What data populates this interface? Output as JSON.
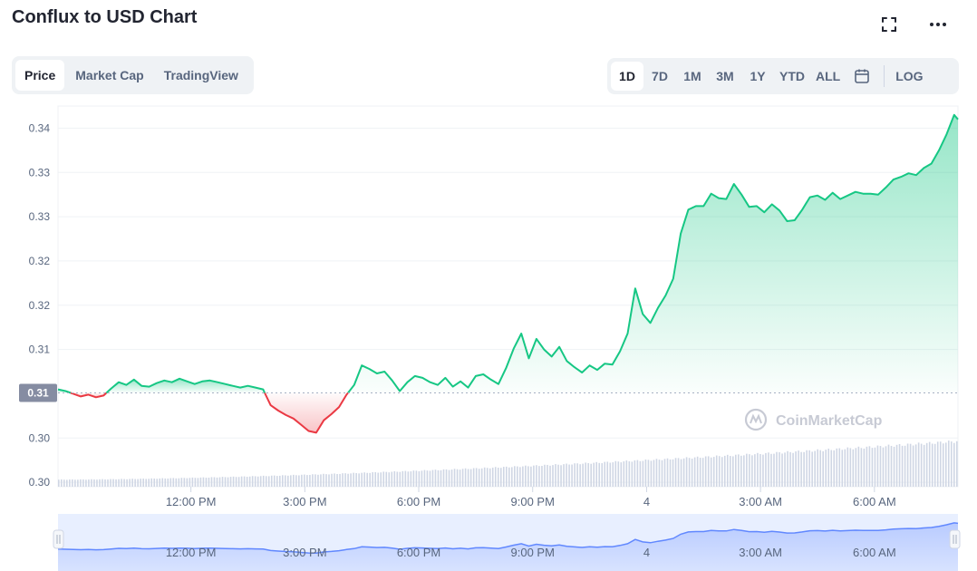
{
  "header": {
    "title": "Conflux to USD Chart",
    "fullscreen_icon": "fullscreen-icon",
    "more_icon": "more-horizontal-icon"
  },
  "tabs": [
    {
      "label": "Price",
      "active": true
    },
    {
      "label": "Market Cap",
      "active": false
    },
    {
      "label": "TradingView",
      "active": false
    }
  ],
  "ranges": [
    {
      "label": "1D",
      "active": true
    },
    {
      "label": "7D",
      "active": false
    },
    {
      "label": "1M",
      "active": false
    },
    {
      "label": "3M",
      "active": false
    },
    {
      "label": "1Y",
      "active": false
    },
    {
      "label": "YTD",
      "active": false
    },
    {
      "label": "ALL",
      "active": false
    }
  ],
  "calendar_icon": "calendar-icon",
  "log_label": "LOG",
  "watermark": "CoinMarketCap",
  "colors": {
    "up": "#16c784",
    "down": "#ea3943",
    "volume": "#cfd6e4",
    "navigator": "#6188ff",
    "current_price_tag": "#858ca2"
  },
  "chart_data": {
    "type": "area",
    "title": "",
    "xlabel": "",
    "ylabel": "",
    "y_tick_labels": [
      "0.34",
      "0.33",
      "0.33",
      "0.32",
      "0.32",
      "0.31",
      "0.30",
      "0.30"
    ],
    "y_tick_values": [
      0.34,
      0.335,
      0.33,
      0.325,
      0.32,
      0.315,
      0.305,
      0.3
    ],
    "ylim": [
      0.2995,
      0.3425
    ],
    "baseline_value": 0.3101,
    "baseline_label": "0.31",
    "x_tick_labels": [
      "12:00 PM",
      "3:00 PM",
      "6:00 PM",
      "9:00 PM",
      "4",
      "3:00 AM",
      "6:00 AM"
    ],
    "x_tick_hours": [
      3.5,
      6.5,
      9.5,
      12.5,
      15.5,
      18.5,
      21.5
    ],
    "x_range_hours": [
      0,
      23.7
    ],
    "grid": true,
    "series": [
      {
        "points": [
          [
            0.0,
            0.3105
          ],
          [
            0.2,
            0.3103
          ],
          [
            0.4,
            0.31
          ],
          [
            0.6,
            0.3097
          ],
          [
            0.8,
            0.3099
          ],
          [
            1.0,
            0.3096
          ],
          [
            1.2,
            0.3098
          ],
          [
            1.4,
            0.3106
          ],
          [
            1.6,
            0.3113
          ],
          [
            1.8,
            0.311
          ],
          [
            2.0,
            0.3116
          ],
          [
            2.2,
            0.3109
          ],
          [
            2.4,
            0.3108
          ],
          [
            2.6,
            0.3112
          ],
          [
            2.8,
            0.3115
          ],
          [
            3.0,
            0.3113
          ],
          [
            3.2,
            0.3117
          ],
          [
            3.4,
            0.3114
          ],
          [
            3.6,
            0.3111
          ],
          [
            3.8,
            0.3114
          ],
          [
            4.0,
            0.3115
          ],
          [
            4.2,
            0.3113
          ],
          [
            4.4,
            0.3111
          ],
          [
            4.6,
            0.3109
          ],
          [
            4.8,
            0.3107
          ],
          [
            5.0,
            0.3109
          ],
          [
            5.2,
            0.3107
          ],
          [
            5.4,
            0.3105
          ],
          [
            5.6,
            0.3087
          ],
          [
            5.8,
            0.3081
          ],
          [
            6.0,
            0.3076
          ],
          [
            6.2,
            0.3072
          ],
          [
            6.4,
            0.3065
          ],
          [
            6.6,
            0.3058
          ],
          [
            6.8,
            0.3056
          ],
          [
            7.0,
            0.307
          ],
          [
            7.2,
            0.3077
          ],
          [
            7.4,
            0.3085
          ],
          [
            7.6,
            0.3099
          ],
          [
            7.8,
            0.311
          ],
          [
            8.0,
            0.3132
          ],
          [
            8.2,
            0.3128
          ],
          [
            8.4,
            0.3123
          ],
          [
            8.6,
            0.3125
          ],
          [
            8.8,
            0.3115
          ],
          [
            9.0,
            0.3103
          ],
          [
            9.2,
            0.3113
          ],
          [
            9.4,
            0.312
          ],
          [
            9.6,
            0.3118
          ],
          [
            9.8,
            0.3113
          ],
          [
            10.0,
            0.311
          ],
          [
            10.2,
            0.3118
          ],
          [
            10.4,
            0.3108
          ],
          [
            10.6,
            0.3114
          ],
          [
            10.8,
            0.3107
          ],
          [
            11.0,
            0.312
          ],
          [
            11.2,
            0.3122
          ],
          [
            11.4,
            0.3116
          ],
          [
            11.6,
            0.3111
          ],
          [
            11.8,
            0.3129
          ],
          [
            12.0,
            0.3151
          ],
          [
            12.2,
            0.3168
          ],
          [
            12.4,
            0.314
          ],
          [
            12.6,
            0.3162
          ],
          [
            12.8,
            0.315
          ],
          [
            13.0,
            0.3142
          ],
          [
            13.2,
            0.3153
          ],
          [
            13.4,
            0.3137
          ],
          [
            13.6,
            0.313
          ],
          [
            13.8,
            0.3124
          ],
          [
            14.0,
            0.3132
          ],
          [
            14.2,
            0.3127
          ],
          [
            14.4,
            0.3134
          ],
          [
            14.6,
            0.3133
          ],
          [
            14.8,
            0.3148
          ],
          [
            15.0,
            0.3168
          ],
          [
            15.2,
            0.3219
          ],
          [
            15.4,
            0.319
          ],
          [
            15.6,
            0.318
          ],
          [
            15.8,
            0.3197
          ],
          [
            16.0,
            0.3211
          ],
          [
            16.2,
            0.323
          ],
          [
            16.4,
            0.3281
          ],
          [
            16.6,
            0.3308
          ],
          [
            16.8,
            0.3312
          ],
          [
            17.0,
            0.3312
          ],
          [
            17.2,
            0.3326
          ],
          [
            17.4,
            0.3321
          ],
          [
            17.6,
            0.332
          ],
          [
            17.8,
            0.3337
          ],
          [
            18.0,
            0.3325
          ],
          [
            18.2,
            0.3311
          ],
          [
            18.4,
            0.3312
          ],
          [
            18.6,
            0.3305
          ],
          [
            18.8,
            0.3314
          ],
          [
            19.0,
            0.3307
          ],
          [
            19.2,
            0.3295
          ],
          [
            19.4,
            0.3296
          ],
          [
            19.6,
            0.3308
          ],
          [
            19.8,
            0.3322
          ],
          [
            20.0,
            0.3324
          ],
          [
            20.2,
            0.3319
          ],
          [
            20.4,
            0.3327
          ],
          [
            20.6,
            0.332
          ],
          [
            20.8,
            0.3324
          ],
          [
            21.0,
            0.3328
          ],
          [
            21.2,
            0.3326
          ],
          [
            21.4,
            0.3326
          ],
          [
            21.6,
            0.3325
          ],
          [
            21.8,
            0.3333
          ],
          [
            22.0,
            0.3342
          ],
          [
            22.2,
            0.3345
          ],
          [
            22.4,
            0.3349
          ],
          [
            22.6,
            0.3347
          ],
          [
            22.8,
            0.3355
          ],
          [
            23.0,
            0.336
          ],
          [
            23.2,
            0.3375
          ],
          [
            23.4,
            0.3393
          ],
          [
            23.6,
            0.3415
          ],
          [
            23.7,
            0.341
          ]
        ]
      }
    ],
    "volume": {
      "start": 0.12,
      "end": 0.77,
      "comment_free_note": ""
    },
    "navigator": {
      "x_tick_labels": [
        "12:00 PM",
        "3:00 PM",
        "6:00 PM",
        "9:00 PM",
        "4",
        "3:00 AM",
        "6:00 AM"
      ]
    }
  }
}
